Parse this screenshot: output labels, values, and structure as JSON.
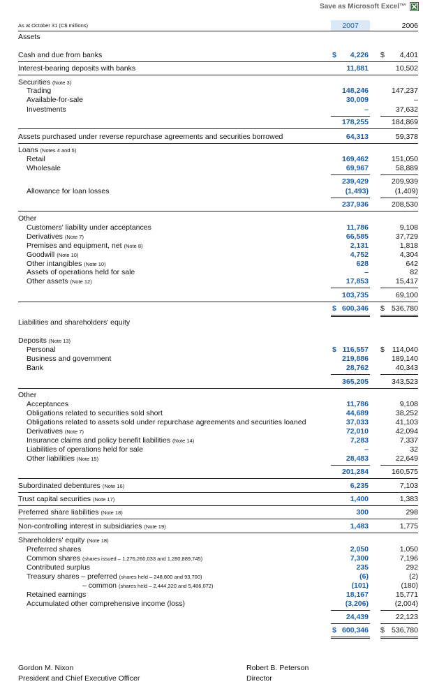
{
  "header": {
    "excel_link": "Save as Microsoft Excel™"
  },
  "table": {
    "caption": "As at October 31 (C$ millions)",
    "col2007": "2007",
    "col2006": "2006",
    "rows": [
      {
        "label": "Assets"
      },
      {
        "label": "Cash and due from banks",
        "cur2007": "$",
        "v2007": "4,226",
        "cur2006": "$",
        "v2006": "4,401"
      },
      {
        "label": "Interest-bearing deposits with banks",
        "v2007": "11,881",
        "v2006": "10,502"
      },
      {
        "label": "Securities",
        "note": "(Note 3)"
      },
      {
        "label": "Trading",
        "v2007": "148,246",
        "v2006": "147,237"
      },
      {
        "label": "Available-for-sale",
        "v2007": "30,009",
        "v2006": "–"
      },
      {
        "label": "Investments",
        "v2007": "–",
        "v2006": "37,632"
      },
      {
        "v2007": "178,255",
        "v2006": "184,869"
      },
      {
        "label": "Assets purchased under reverse repurchase agreements and securities borrowed",
        "v2007": "64,313",
        "v2006": "59,378"
      },
      {
        "label": "Loans",
        "note": "(Notes 4 and 5)"
      },
      {
        "label": "Retail",
        "v2007": "169,462",
        "v2006": "151,050"
      },
      {
        "label": "Wholesale",
        "v2007": "69,967",
        "v2006": "58,889"
      },
      {
        "v2007": "239,429",
        "v2006": "209,939"
      },
      {
        "label": "Allowance for loan losses",
        "v2007": "(1,493)",
        "v2006": "(1,409)"
      },
      {
        "v2007": "237,936",
        "v2006": "208,530"
      },
      {
        "label": "Other"
      },
      {
        "label": "Customers' liability under acceptances",
        "v2007": "11,786",
        "v2006": "9,108"
      },
      {
        "label": "Derivatives",
        "note": "(Note 7)",
        "v2007": "66,585",
        "v2006": "37,729"
      },
      {
        "label": "Premises and equipment, net",
        "note": "(Note 8)",
        "v2007": "2,131",
        "v2006": "1,818"
      },
      {
        "label": "Goodwill",
        "note": "(Note 10)",
        "v2007": "4,752",
        "v2006": "4,304"
      },
      {
        "label": "Other intangibles",
        "note": "(Note 10)",
        "v2007": "628",
        "v2006": "642"
      },
      {
        "label": "Assets of operations held for sale",
        "v2007": "–",
        "v2006": "82"
      },
      {
        "label": "Other assets",
        "note": "(Note 12)",
        "v2007": "17,853",
        "v2006": "15,417"
      },
      {
        "v2007": "103,735",
        "v2006": "69,100"
      },
      {
        "cur2007": "$",
        "v2007": "600,346",
        "cur2006": "$",
        "v2006": "536,780"
      },
      {
        "label": "Liabilities and shareholders' equity"
      },
      {
        "label": "Deposits",
        "note": "(Note 13)"
      },
      {
        "label": "Personal",
        "cur2007": "$",
        "v2007": "116,557",
        "cur2006": "$",
        "v2006": "114,040"
      },
      {
        "label": "Business and government",
        "v2007": "219,886",
        "v2006": "189,140"
      },
      {
        "label": "Bank",
        "v2007": "28,762",
        "v2006": "40,343"
      },
      {
        "v2007": "365,205",
        "v2006": "343,523"
      },
      {
        "label": "Other"
      },
      {
        "label": "Acceptances",
        "v2007": "11,786",
        "v2006": "9,108"
      },
      {
        "label": "Obligations related to securities sold short",
        "v2007": "44,689",
        "v2006": "38,252"
      },
      {
        "label": "Obligations related to assets sold under repurchase agreements and securities loaned",
        "v2007": "37,033",
        "v2006": "41,103"
      },
      {
        "label": "Derivatives",
        "note": "(Note 7)",
        "v2007": "72,010",
        "v2006": "42,094"
      },
      {
        "label": "Insurance claims and policy benefit liabilities",
        "note": "(Note 14)",
        "v2007": "7,283",
        "v2006": "7,337"
      },
      {
        "label": "Liabilities of operations held for sale",
        "v2007": "–",
        "v2006": "32"
      },
      {
        "label": "Other liabilities",
        "note": "(Note 15)",
        "v2007": "28,483",
        "v2006": "22,649"
      },
      {
        "v2007": "201,284",
        "v2006": "160,575"
      },
      {
        "label": "Subordinated debentures",
        "note": "(Note 16)",
        "v2007": "6,235",
        "v2006": "7,103"
      },
      {
        "label": "Trust capital securities",
        "note": "(Note 17)",
        "v2007": "1,400",
        "v2006": "1,383"
      },
      {
        "label": "Preferred share liabilities",
        "note": "(Note 18)",
        "v2007": "300",
        "v2006": "298"
      },
      {
        "label": "Non-controlling interest in subsidiaries",
        "note": "(Note 19)",
        "v2007": "1,483",
        "v2006": "1,775"
      },
      {
        "label": "Shareholders' equity",
        "note": "(Note 18)"
      },
      {
        "label": "Preferred shares",
        "v2007": "2,050",
        "v2006": "1,050"
      },
      {
        "label": "Common shares",
        "note": "(shares issued – 1,276,260,033 and 1,280,889,745)",
        "v2007": "7,300",
        "v2006": "7,196"
      },
      {
        "label": "Contributed surplus",
        "v2007": "235",
        "v2006": "292"
      },
      {
        "label": "Treasury shares – preferred",
        "note": "(shares held – 248,800 and 93,700)",
        "v2007": "(6)",
        "v2006": "(2)"
      },
      {
        "label": "– common",
        "note": "(shares held – 2,444,320 and 5,486,072)",
        "v2007": "(101)",
        "v2006": "(180)"
      },
      {
        "label": "Retained earnings",
        "v2007": "18,167",
        "v2006": "15,771"
      },
      {
        "label": "Accumulated other comprehensive income (loss)",
        "v2007": "(3,206)",
        "v2006": "(2,004)"
      },
      {
        "v2007": "24,439",
        "v2006": "22,123"
      },
      {
        "cur2007": "$",
        "v2007": "600,346",
        "cur2006": "$",
        "v2006": "536,780"
      }
    ]
  },
  "signatures": [
    {
      "name": "Gordon M. Nixon",
      "title": "President and Chief Executive Officer"
    },
    {
      "name": "Robert B. Peterson",
      "title": "Director"
    }
  ]
}
